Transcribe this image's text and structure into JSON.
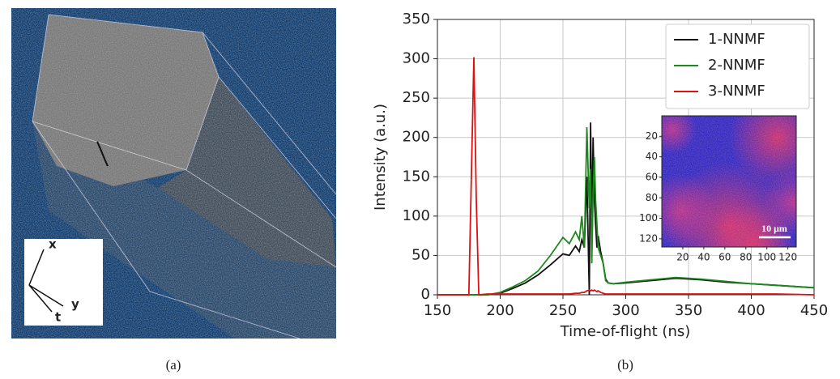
{
  "panel_a": {
    "caption": "(a)",
    "axis_labels": [
      "x",
      "y",
      "t"
    ]
  },
  "chart_data": {
    "type": "line",
    "caption": "(b)",
    "xlabel": "Time-of-flight (ns)",
    "ylabel": "Intensity (a.u.)",
    "xlim": [
      150,
      450
    ],
    "xticks": [
      150,
      200,
      250,
      300,
      350,
      400,
      450
    ],
    "ylim": [
      0,
      350
    ],
    "yticks": [
      0,
      50,
      100,
      150,
      200,
      250,
      300,
      350
    ],
    "grid": true,
    "legend": "upper right",
    "x": [
      150,
      170,
      175,
      177,
      179,
      181,
      183,
      190,
      200,
      210,
      220,
      230,
      240,
      250,
      255,
      260,
      263,
      265,
      267,
      269,
      271,
      272,
      273,
      274,
      275,
      276,
      277,
      278,
      280,
      282,
      284,
      286,
      290,
      300,
      320,
      340,
      360,
      380,
      400,
      420,
      450
    ],
    "series": [
      {
        "name": "1-NNMF",
        "color": "#111111",
        "values": [
          0,
          0,
          0,
          0,
          0,
          0,
          0,
          0,
          2,
          8,
          15,
          25,
          38,
          52,
          50,
          62,
          55,
          70,
          60,
          150,
          0,
          219,
          80,
          200,
          120,
          90,
          60,
          75,
          55,
          40,
          20,
          15,
          14,
          15,
          18,
          21,
          19,
          16,
          14,
          12,
          9
        ]
      },
      {
        "name": "2-NNMF",
        "color": "#1a8a1a",
        "values": [
          0,
          0,
          0,
          0,
          0,
          0,
          0,
          0,
          3,
          10,
          18,
          30,
          50,
          73,
          65,
          80,
          70,
          100,
          60,
          213,
          110,
          160,
          40,
          130,
          175,
          120,
          90,
          60,
          50,
          40,
          18,
          15,
          14,
          16,
          19,
          22,
          20,
          17,
          14,
          12,
          9
        ]
      },
      {
        "name": "3-NNMF",
        "color": "#dd1111",
        "values": [
          0,
          0,
          0,
          150,
          302,
          120,
          0,
          1,
          1,
          1,
          1,
          1,
          1,
          1,
          1,
          2,
          2,
          3,
          3,
          5,
          6,
          5,
          6,
          5,
          6,
          5,
          4,
          5,
          3,
          2,
          1,
          1,
          1,
          1,
          1,
          1,
          1,
          1,
          1,
          1,
          0
        ]
      }
    ],
    "inset": {
      "xlim": [
        0,
        128
      ],
      "ylim": [
        0,
        128
      ],
      "xticks": [
        20,
        40,
        60,
        80,
        100,
        120
      ],
      "yticks": [
        20,
        40,
        60,
        80,
        100,
        120
      ],
      "scale_bar": "10 μm"
    }
  }
}
